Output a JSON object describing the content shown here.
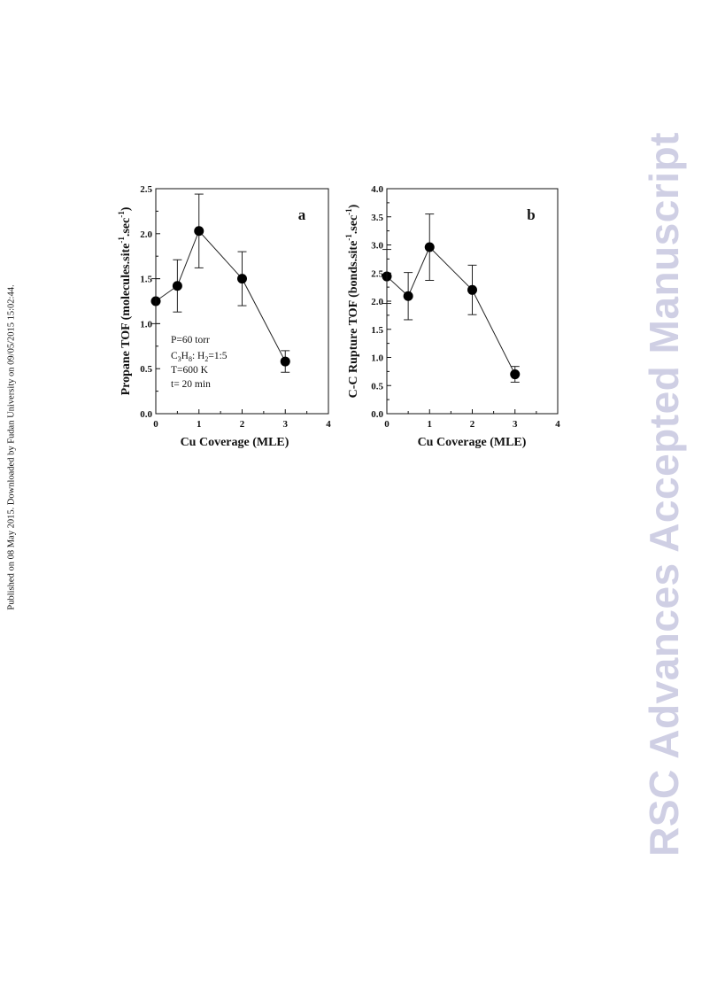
{
  "side_note": "Published on 08 May 2015. Downloaded by Fudan University on 09/05/2015 15:02:44.",
  "watermark": "RSC Advances Accepted Manuscript",
  "chart_data": [
    {
      "type": "scatter",
      "panel_label": "a",
      "xlabel": "Cu Coverage (MLE)",
      "ylabel": "Propane TOF (molecules.site⁻¹.sec⁻¹)",
      "xlim": [
        0,
        4
      ],
      "ylim": [
        0,
        2.5
      ],
      "x_ticks": [
        "0",
        "1",
        "2",
        "3",
        "4"
      ],
      "y_ticks": [
        "0.0",
        "0.5",
        "1.0",
        "1.5",
        "2.0",
        "2.5"
      ],
      "connected": true,
      "points": [
        {
          "x": 0,
          "y": 1.25,
          "err": 0.25
        },
        {
          "x": 0.5,
          "y": 1.42,
          "err": 0.29
        },
        {
          "x": 1,
          "y": 2.03,
          "err": 0.41
        },
        {
          "x": 2,
          "y": 1.5,
          "err": 0.3
        },
        {
          "x": 3,
          "y": 0.58,
          "err": 0.12
        }
      ],
      "annotation": [
        "P=60 torr",
        "C3H8: H2=1:5",
        "T=600 K",
        "t= 20 min"
      ]
    },
    {
      "type": "scatter",
      "panel_label": "b",
      "xlabel": "Cu Coverage (MLE)",
      "ylabel": "C-C Rupture TOF (bonds.site⁻¹.sec⁻¹)",
      "xlim": [
        0,
        4
      ],
      "ylim": [
        0,
        4.0
      ],
      "x_ticks": [
        "0",
        "1",
        "2",
        "3",
        "4"
      ],
      "y_ticks": [
        "0.0",
        "0.5",
        "1.0",
        "1.5",
        "2.0",
        "2.5",
        "3.0",
        "3.5",
        "4.0"
      ],
      "connected": true,
      "points": [
        {
          "x": 0,
          "y": 2.44,
          "err": 0.48
        },
        {
          "x": 0.5,
          "y": 2.09,
          "err": 0.42
        },
        {
          "x": 1,
          "y": 2.96,
          "err": 0.59
        },
        {
          "x": 2,
          "y": 2.2,
          "err": 0.44
        },
        {
          "x": 3,
          "y": 0.7,
          "err": 0.14
        }
      ]
    }
  ]
}
